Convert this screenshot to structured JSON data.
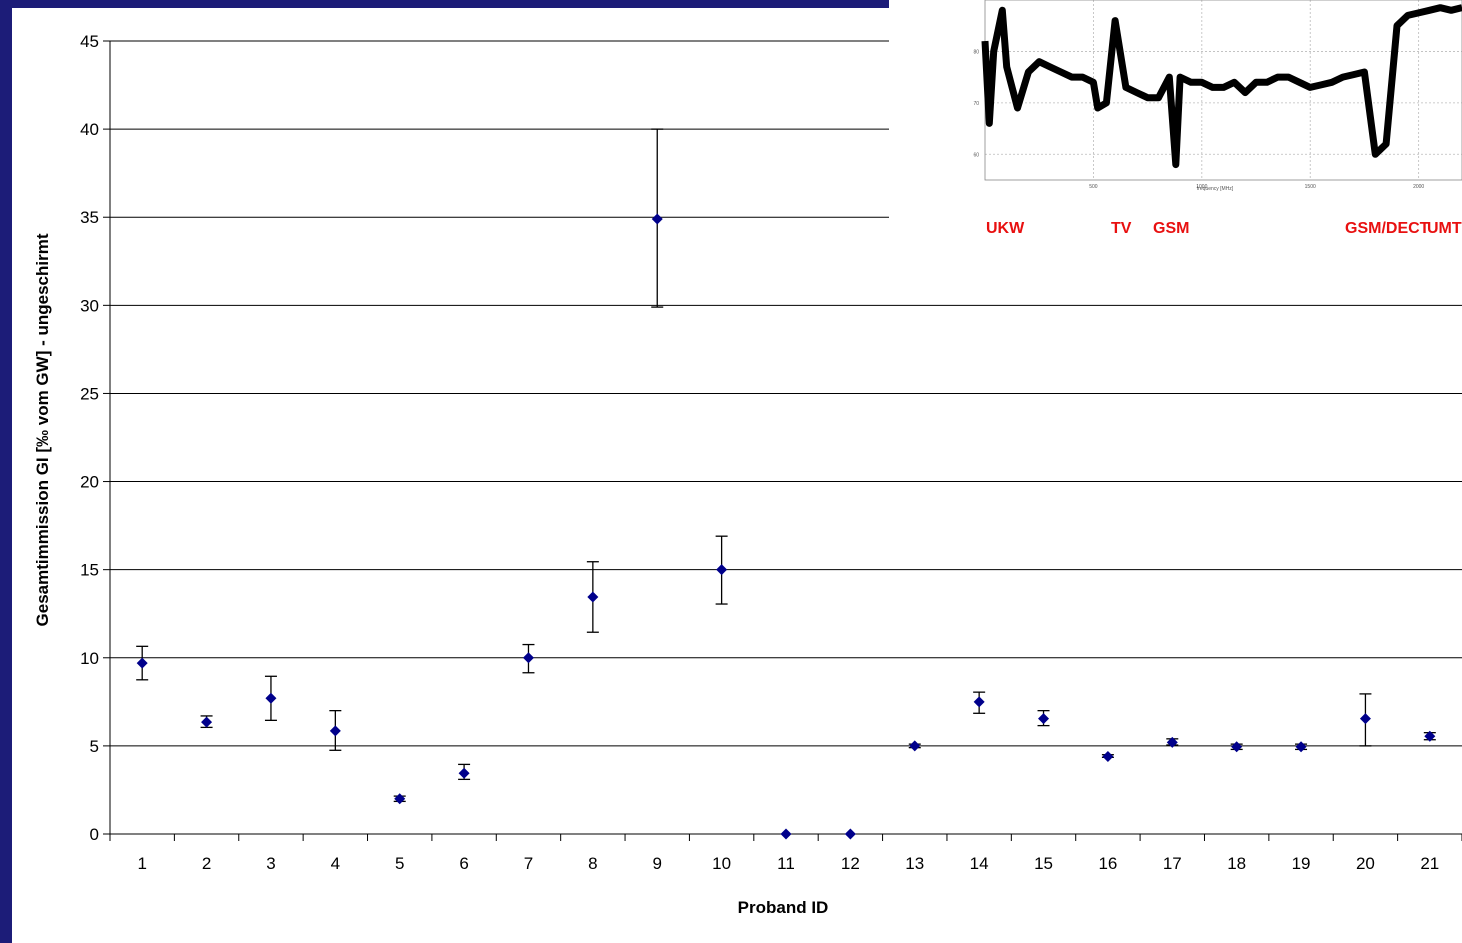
{
  "chart_data": [
    {
      "type": "scatter",
      "title": "",
      "xlabel": "Proband ID",
      "ylabel": "Gesamtimmission GI [‰ vom GW] - ungeschirmt",
      "ylim": [
        0,
        45
      ],
      "yticks": [
        0,
        5,
        10,
        15,
        20,
        25,
        30,
        35,
        40,
        45
      ],
      "grid": "horizontal",
      "legend": "none",
      "categories": [
        "1",
        "2",
        "3",
        "4",
        "5",
        "6",
        "7",
        "8",
        "9",
        "10",
        "11",
        "12",
        "13",
        "14",
        "15",
        "16",
        "17",
        "18",
        "19",
        "20",
        "21"
      ],
      "series": [
        {
          "values": [
            9.7,
            6.35,
            7.7,
            5.85,
            2.0,
            3.45,
            10.0,
            13.45,
            34.9,
            15.0,
            0.0,
            0.0,
            5.0,
            7.5,
            6.55,
            4.4,
            5.2,
            4.95,
            4.95,
            6.55,
            5.55
          ],
          "error_low": [
            8.75,
            6.05,
            6.45,
            4.75,
            1.85,
            3.1,
            9.15,
            11.45,
            29.9,
            13.05,
            0.0,
            0.0,
            4.9,
            6.85,
            6.15,
            4.35,
            5.05,
            4.8,
            4.8,
            5.0,
            5.35
          ],
          "error_high": [
            10.65,
            6.7,
            8.95,
            7.0,
            2.15,
            3.95,
            10.75,
            15.45,
            40.0,
            16.9,
            0.0,
            0.0,
            5.1,
            8.05,
            7.0,
            4.5,
            5.4,
            5.1,
            5.1,
            7.95,
            5.75
          ],
          "color": "#00008b"
        }
      ]
    },
    {
      "type": "line",
      "title": "",
      "xlabel": "frequency [MHz]",
      "ylabel": "",
      "xlim": [
        0,
        2200
      ],
      "ylim": [
        55,
        90
      ],
      "xticks": [
        500,
        1000,
        1500,
        2000
      ],
      "yticks": [
        60,
        70,
        80
      ],
      "grid": "dotted",
      "color": "#000000",
      "band_labels": [
        "UKW",
        "TV",
        "GSM",
        "GSM/DECT",
        "UMTS"
      ],
      "band_label_color": "#e81010",
      "x": [
        0,
        20,
        40,
        60,
        80,
        100,
        150,
        200,
        250,
        300,
        350,
        400,
        450,
        500,
        520,
        560,
        600,
        650,
        700,
        750,
        800,
        850,
        880,
        900,
        950,
        1000,
        1050,
        1100,
        1150,
        1200,
        1250,
        1300,
        1350,
        1400,
        1450,
        1500,
        1550,
        1600,
        1650,
        1700,
        1750,
        1800,
        1850,
        1900,
        1950,
        2000,
        2050,
        2100,
        2150,
        2200
      ],
      "y": [
        82,
        66,
        80,
        84,
        88,
        77,
        69,
        76,
        78,
        77,
        76,
        75,
        75,
        74,
        69,
        70,
        86,
        73,
        72,
        71,
        71,
        75,
        58,
        75,
        74,
        74,
        73,
        73,
        74,
        72,
        74,
        74,
        75,
        75,
        74,
        73,
        73.5,
        74,
        75,
        75.5,
        76,
        60,
        62,
        85,
        87,
        87.5,
        88,
        88.5,
        88,
        88.5
      ]
    }
  ]
}
